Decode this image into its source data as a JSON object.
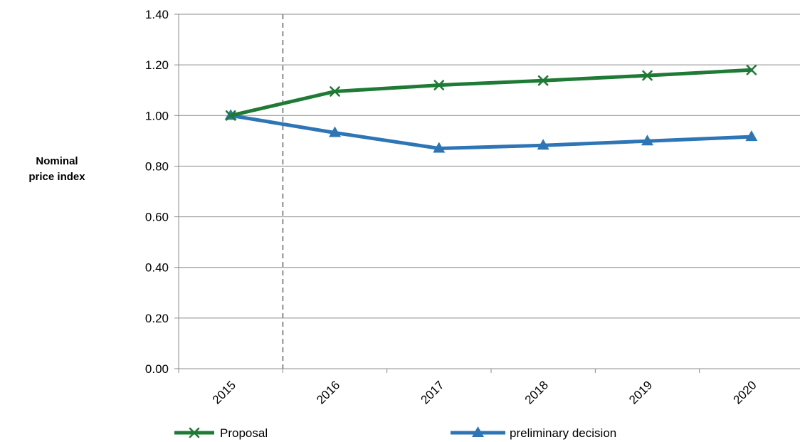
{
  "chart_data": {
    "type": "line",
    "categories": [
      "2015",
      "2016",
      "2017",
      "2018",
      "2019",
      "2020"
    ],
    "ylim": [
      0,
      1.4
    ],
    "yticks": [
      "0.00",
      "0.20",
      "0.40",
      "0.60",
      "0.80",
      "1.00",
      "1.20",
      "1.40"
    ],
    "ylabel_line1": "Nominal",
    "ylabel_line2": "price index",
    "grid": "horizontal",
    "legend_position": "bottom",
    "series": [
      {
        "name": "Proposal",
        "color": "#1e7a34",
        "marker": "x-icon",
        "values": [
          1.0,
          1.095,
          1.12,
          1.138,
          1.158,
          1.18
        ]
      },
      {
        "name": "preliminary decision",
        "color": "#2e75b6",
        "marker": "triangle-icon",
        "values": [
          1.0,
          0.932,
          0.87,
          0.882,
          0.899,
          0.916
        ]
      }
    ]
  }
}
